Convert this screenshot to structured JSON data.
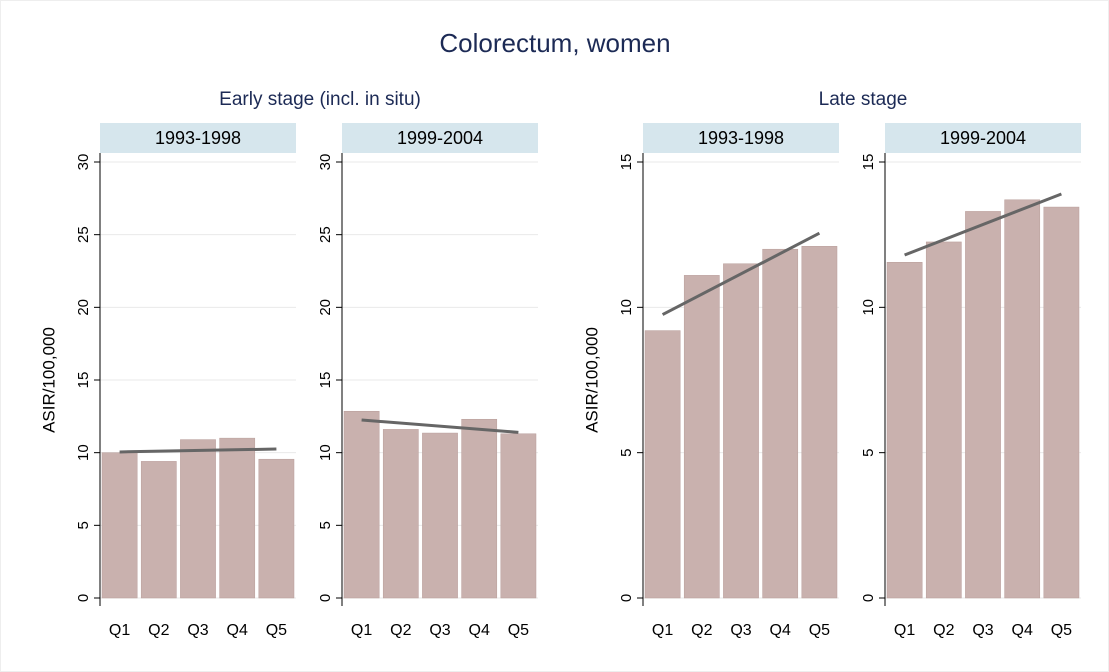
{
  "title": "Colorectum, women",
  "groups": [
    {
      "title": "Early stage (incl. in situ)"
    },
    {
      "title": "Late stage"
    }
  ],
  "chart_data": [
    {
      "type": "bar",
      "subtitle": "1993-1998",
      "ylabel": "ASIR/100,000",
      "categories": [
        "Q1",
        "Q2",
        "Q3",
        "Q4",
        "Q5"
      ],
      "values": [
        10.0,
        9.4,
        10.9,
        11.0,
        9.55
      ],
      "trend": [
        10.05,
        10.25
      ],
      "color": "#c9b1ae",
      "trend_color": "#666666",
      "ylim": [
        0,
        30
      ],
      "yticks": [
        0,
        5,
        10,
        15,
        20,
        25,
        30
      ],
      "grid": true
    },
    {
      "type": "bar",
      "subtitle": "1999-2004",
      "categories": [
        "Q1",
        "Q2",
        "Q3",
        "Q4",
        "Q5"
      ],
      "values": [
        12.85,
        11.6,
        11.35,
        12.3,
        11.3
      ],
      "trend": [
        12.25,
        11.4
      ],
      "color": "#c9b1ae",
      "trend_color": "#666666",
      "ylim": [
        0,
        30
      ],
      "yticks": [
        0,
        5,
        10,
        15,
        20,
        25,
        30
      ],
      "grid": true
    },
    {
      "type": "bar",
      "subtitle": "1993-1998",
      "ylabel": "ASIR/100,000",
      "categories": [
        "Q1",
        "Q2",
        "Q3",
        "Q4",
        "Q5"
      ],
      "values": [
        9.2,
        11.1,
        11.5,
        12.0,
        12.1
      ],
      "trend": [
        9.75,
        12.55
      ],
      "color": "#c9b1ae",
      "trend_color": "#666666",
      "ylim": [
        0,
        15
      ],
      "yticks": [
        0,
        5,
        10,
        15
      ],
      "grid": true
    },
    {
      "type": "bar",
      "subtitle": "1999-2004",
      "categories": [
        "Q1",
        "Q2",
        "Q3",
        "Q4",
        "Q5"
      ],
      "values": [
        11.55,
        12.25,
        13.3,
        13.7,
        13.45
      ],
      "trend": [
        11.8,
        13.9
      ],
      "color": "#c9b1ae",
      "trend_color": "#666666",
      "ylim": [
        0,
        15
      ],
      "yticks": [
        0,
        5,
        10,
        15
      ],
      "grid": true
    }
  ]
}
